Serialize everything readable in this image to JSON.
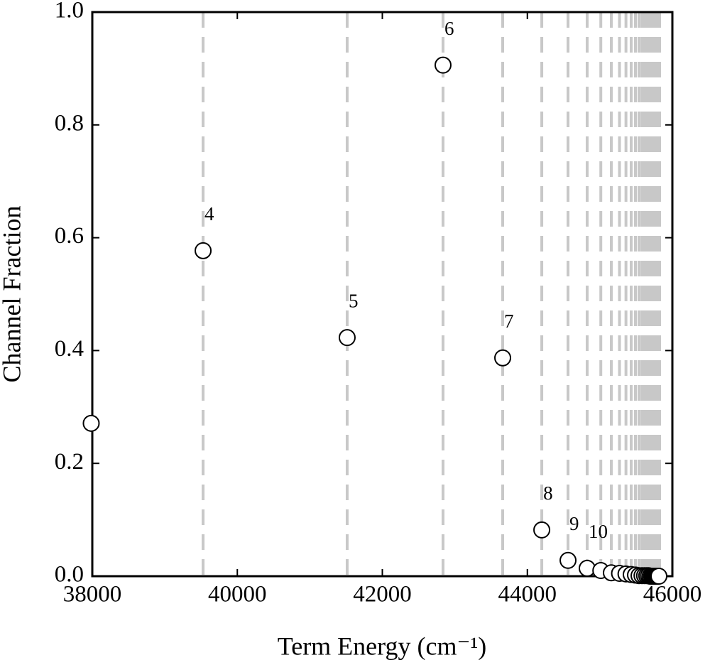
{
  "chart_data": {
    "type": "scatter",
    "xlabel": "Term Energy (cm⁻¹)",
    "ylabel": "Channel Fraction",
    "xlim": [
      38000,
      46000
    ],
    "ylim": [
      0,
      1
    ],
    "xticks": [
      38000,
      40000,
      42000,
      44000,
      46000
    ],
    "yticks": [
      {
        "value": 0,
        "label": "0.0"
      },
      0.2,
      0.4,
      0.6,
      0.8,
      {
        "value": 1,
        "label": "1.0"
      }
    ],
    "marker_color": "#000000",
    "line_color": "#c8c8c8",
    "vlines": [
      39528,
      41515,
      42837,
      43660,
      44199,
      44561,
      44825,
      45013,
      45158,
      45271,
      45360,
      45432,
      45491,
      45540,
      45581,
      45616,
      45646,
      45671,
      45693,
      45713,
      45729,
      45744,
      45758,
      45769,
      45780,
      45790,
      45798,
      45806,
      45813,
      45819,
      45824
    ],
    "x": [
      37985,
      39528,
      41515,
      42837,
      43660,
      44199,
      44561,
      44825,
      45013,
      45158,
      45271,
      45360,
      45432,
      45491,
      45540,
      45581,
      45616,
      45646,
      45671,
      45693,
      45713,
      45729,
      45744,
      45758,
      45769,
      45780,
      45790,
      45798,
      45814
    ],
    "values": [
      0.271,
      0.577,
      0.423,
      0.906,
      0.387,
      0.082,
      0.028,
      0.014,
      0.01,
      0.006,
      0.005,
      0.004,
      0.003,
      0.002,
      0.001,
      0.001,
      0.001,
      0.001,
      0.001,
      0,
      0,
      0,
      0,
      0,
      0,
      0,
      0,
      0,
      0
    ],
    "point_labels": [
      null,
      "4",
      "5",
      "6",
      "7",
      "8",
      "9",
      "10",
      null,
      null,
      null,
      null,
      null,
      null,
      null,
      null,
      null,
      null,
      null,
      null,
      null,
      null,
      null,
      null,
      null,
      null,
      null,
      null,
      null
    ]
  }
}
